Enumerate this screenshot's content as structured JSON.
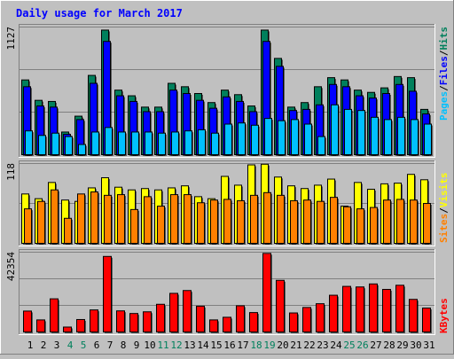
{
  "title": "Daily usage for March 2017",
  "right_labels": {
    "pages": "Pages",
    "files": "Files",
    "hits": "Hits",
    "sites": "Sites",
    "visits": "Visits",
    "kbytes": "KBytes",
    "separator": "/"
  },
  "axis_max_labels": {
    "top": "1127",
    "middle": "118",
    "bottom": "42354"
  },
  "colors": {
    "background": "#c0c0c0",
    "title": "#0000ff",
    "hits": "#00805c",
    "files": "#0000ff",
    "pages": "#00c0ff",
    "visits": "#ffff00",
    "sites": "#ff8000",
    "kbytes": "#ff0000",
    "weekend_day": "#00805c",
    "weekday": "#000000"
  },
  "chart_data": [
    {
      "type": "bar",
      "title": "Daily usage for March 2017",
      "categories": [
        "1",
        "2",
        "3",
        "4",
        "5",
        "6",
        "7",
        "8",
        "9",
        "10",
        "11",
        "12",
        "13",
        "14",
        "15",
        "16",
        "17",
        "18",
        "19",
        "20",
        "21",
        "22",
        "23",
        "24",
        "25",
        "26",
        "27",
        "28",
        "29",
        "30",
        "31"
      ],
      "weekend_days": [
        4,
        5,
        11,
        12,
        18,
        19,
        25,
        26
      ],
      "ylim": [
        0,
        1127
      ],
      "series": [
        {
          "name": "Hits",
          "values": [
            660,
            480,
            470,
            200,
            340,
            700,
            1100,
            570,
            520,
            420,
            420,
            630,
            600,
            540,
            460,
            570,
            530,
            430,
            1100,
            850,
            420,
            460,
            600,
            680,
            660,
            570,
            550,
            590,
            690,
            680,
            400
          ]
        },
        {
          "name": "Files",
          "values": [
            600,
            430,
            420,
            180,
            310,
            630,
            1000,
            520,
            470,
            380,
            380,
            570,
            540,
            480,
            410,
            510,
            470,
            380,
            1000,
            780,
            390,
            400,
            440,
            620,
            600,
            520,
            500,
            540,
            620,
            560,
            360
          ]
        },
        {
          "name": "Pages",
          "values": [
            210,
            170,
            190,
            160,
            90,
            200,
            240,
            200,
            200,
            200,
            190,
            200,
            210,
            220,
            190,
            270,
            280,
            260,
            320,
            300,
            310,
            270,
            160,
            440,
            400,
            390,
            330,
            310,
            330,
            310,
            270
          ]
        }
      ]
    },
    {
      "type": "bar",
      "categories": [
        "1",
        "2",
        "3",
        "4",
        "5",
        "6",
        "7",
        "8",
        "9",
        "10",
        "11",
        "12",
        "13",
        "14",
        "15",
        "16",
        "17",
        "18",
        "19",
        "20",
        "21",
        "22",
        "23",
        "24",
        "25",
        "26",
        "27",
        "28",
        "29",
        "30",
        "31"
      ],
      "ylim": [
        0,
        118
      ],
      "series": [
        {
          "name": "Visits",
          "values": [
            73,
            66,
            90,
            64,
            62,
            82,
            97,
            83,
            79,
            81,
            79,
            82,
            85,
            69,
            66,
            99,
            86,
            116,
            117,
            98,
            85,
            81,
            86,
            95,
            55,
            90,
            80,
            88,
            89,
            102,
            94
          ]
        },
        {
          "name": "Sites",
          "values": [
            51,
            62,
            79,
            37,
            73,
            76,
            71,
            72,
            50,
            69,
            55,
            72,
            72,
            60,
            64,
            65,
            63,
            71,
            75,
            71,
            63,
            64,
            62,
            68,
            54,
            51,
            53,
            64,
            65,
            64,
            59
          ]
        }
      ]
    },
    {
      "type": "bar",
      "categories": [
        "1",
        "2",
        "3",
        "4",
        "5",
        "6",
        "7",
        "8",
        "9",
        "10",
        "11",
        "12",
        "13",
        "14",
        "15",
        "16",
        "17",
        "18",
        "19",
        "20",
        "21",
        "22",
        "23",
        "24",
        "25",
        "26",
        "27",
        "28",
        "29",
        "30",
        "31"
      ],
      "ylim": [
        0,
        42354
      ],
      "series": [
        {
          "name": "KBytes",
          "values": [
            11100,
            6400,
            17600,
            2600,
            6600,
            11700,
            40100,
            11200,
            9800,
            10700,
            14700,
            20500,
            22000,
            13700,
            6400,
            7800,
            13900,
            10300,
            41700,
            27400,
            10100,
            13000,
            15000,
            19500,
            24200,
            23900,
            25500,
            22600,
            24800,
            17300,
            12700
          ]
        }
      ]
    }
  ]
}
